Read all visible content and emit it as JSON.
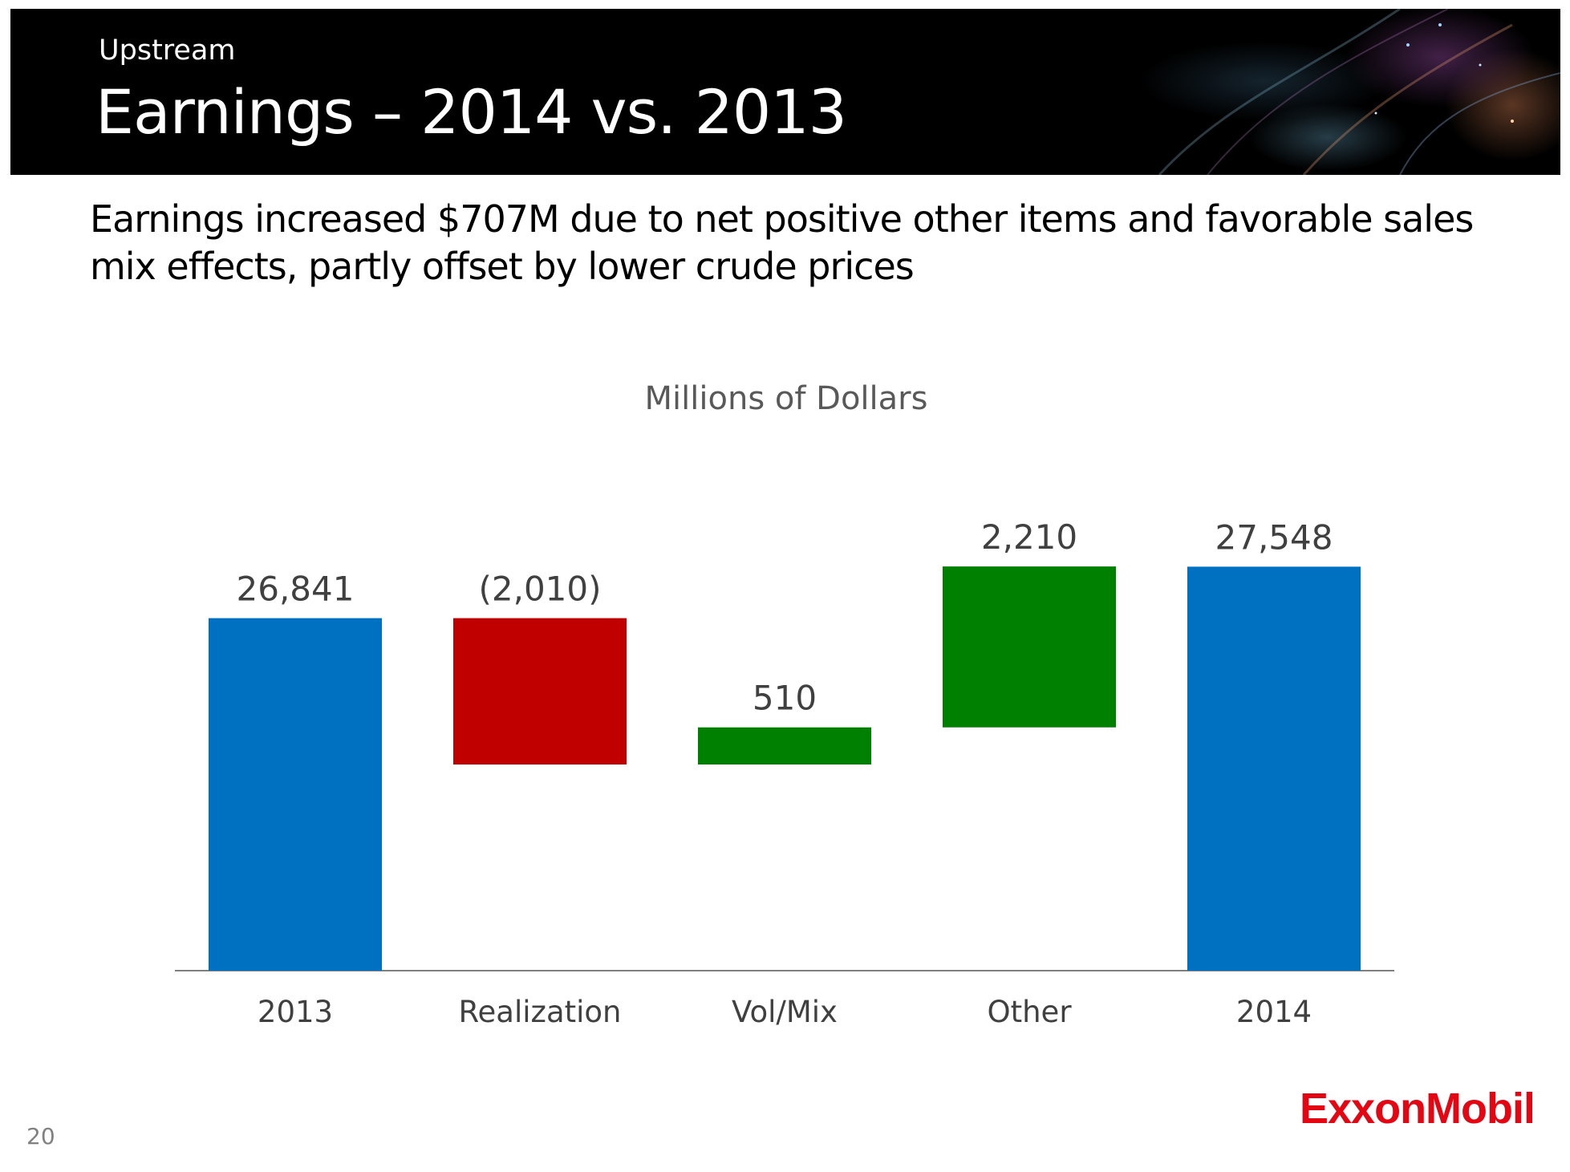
{
  "header": {
    "section": "Upstream",
    "title": "Earnings – 2014 vs. 2013"
  },
  "headline": "Earnings increased $707M due to net positive other items and favorable sales mix effects, partly offset by lower crude prices",
  "chart_data": {
    "type": "bar",
    "subtype": "waterfall",
    "unit_label": "Millions of Dollars",
    "categories": [
      "2013",
      "Realization",
      "Vol/Mix",
      "Other",
      "2014"
    ],
    "values": [
      26841,
      -2010,
      510,
      2210,
      27548
    ],
    "value_labels": [
      "26,841",
      "(2,010)",
      "510",
      "2,210",
      "27,548"
    ],
    "bar_kinds": [
      "total",
      "delta",
      "delta",
      "delta",
      "total"
    ],
    "colors": {
      "total": "#0070C0",
      "increase": "#008000",
      "decrease": "#C00000",
      "axis": "#808080",
      "label": "#404040"
    },
    "ylim": [
      0,
      28000
    ],
    "grid": false,
    "legend": "none"
  },
  "footer": {
    "page_number": "20",
    "logo_text": "ExxonMobil",
    "logo_color": "#E30613"
  }
}
